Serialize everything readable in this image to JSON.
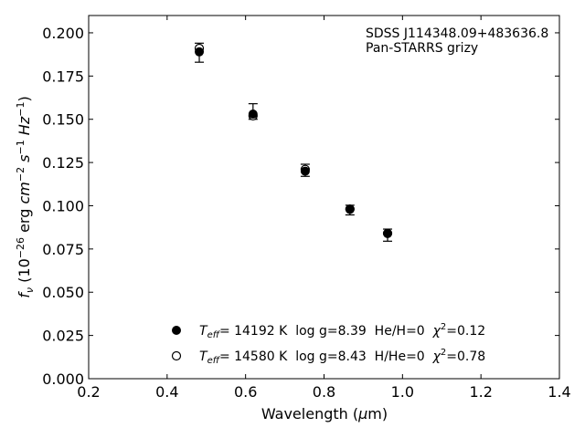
{
  "chart_data": {
    "type": "scatter",
    "xlabel": "Wavelength (μm)",
    "ylabel": "f_ν (10^-26 erg cm^-2 s^-1 Hz^-1)",
    "xlim": [
      0.2,
      1.4
    ],
    "ylim": [
      0.0,
      0.21
    ],
    "xticks": [
      "0.2",
      "0.4",
      "0.6",
      "0.8",
      "1.0",
      "1.2",
      "1.4"
    ],
    "yticks": [
      "0.000",
      "0.025",
      "0.050",
      "0.075",
      "0.100",
      "0.125",
      "0.150",
      "0.175",
      "0.200"
    ],
    "annotation": [
      "SDSS J114348.09+483636.8",
      "Pan-STARRS grizy"
    ],
    "observed": {
      "x": [
        0.482,
        0.619,
        0.752,
        0.866,
        0.962
      ],
      "y": [
        0.1885,
        0.1545,
        0.1205,
        0.0975,
        0.083
      ],
      "yerr": [
        0.0055,
        0.0045,
        0.0035,
        0.0028,
        0.0035
      ]
    },
    "series": [
      {
        "name": "Teff= 14192 K  log g=8.39  He/H=0  χ2=0.12",
        "marker": "filled-circle",
        "x": [
          0.482,
          0.619,
          0.752,
          0.866,
          0.962
        ],
        "y": [
          0.189,
          0.153,
          0.12,
          0.098,
          0.084
        ]
      },
      {
        "name": "Teff= 14580 K  log g=8.43  H/He=0  χ2=0.78",
        "marker": "open-circle",
        "x": [
          0.482,
          0.619,
          0.752,
          0.866,
          0.962
        ],
        "y": [
          0.191,
          0.152,
          0.121,
          0.098,
          0.084
        ]
      }
    ],
    "legend": [
      {
        "marker": "filled-circle",
        "teff": "= 14192 K",
        "rest": "  log g=8.39  He/H=0  ",
        "chi": "=0.12"
      },
      {
        "marker": "open-circle",
        "teff": "= 14580 K",
        "rest": "  log g=8.43  H/He=0  ",
        "chi": "=0.78"
      }
    ],
    "legend_position": "bottom-center",
    "grid": false,
    "colors": {
      "marker": "#000000",
      "axes": "#000000",
      "background": "#ffffff"
    }
  }
}
